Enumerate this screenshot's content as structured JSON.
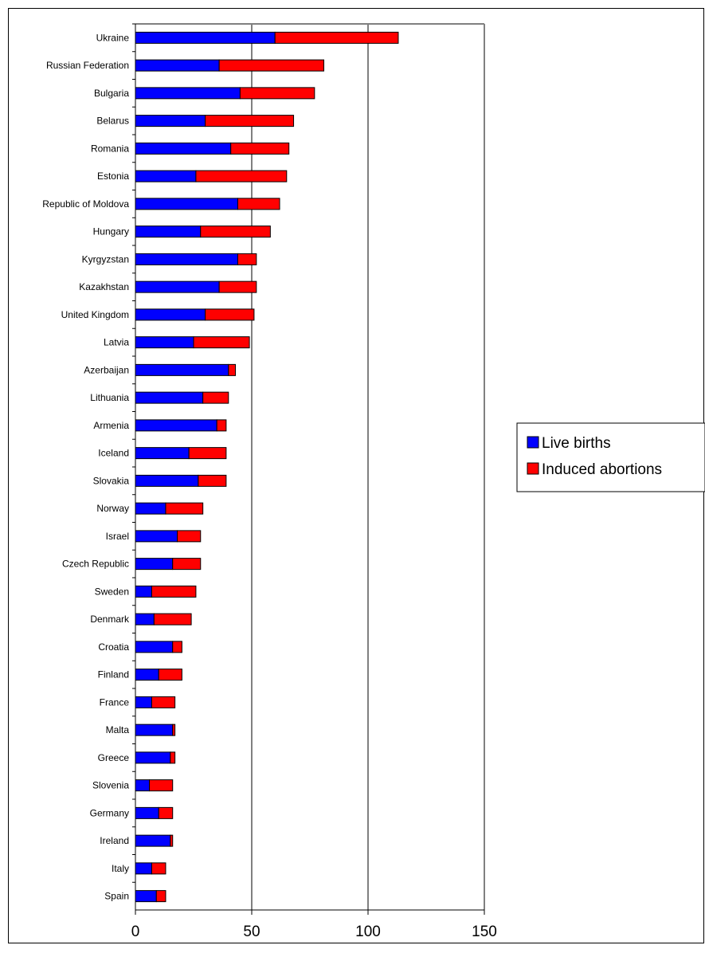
{
  "chart_data": {
    "type": "bar",
    "orientation": "horizontal",
    "stacked": true,
    "categories": [
      "Ukraine",
      "Russian Federation",
      "Bulgaria",
      "Belarus",
      "Romania",
      "Estonia",
      "Republic of Moldova",
      "Hungary",
      "Kyrgyzstan",
      "Kazakhstan",
      "United Kingdom",
      "Latvia",
      "Azerbaijan",
      "Lithuania",
      "Armenia",
      "Iceland",
      "Slovakia",
      "Norway",
      "Israel",
      "Czech Republic",
      "Sweden",
      "Denmark",
      "Croatia",
      "Finland",
      "France",
      "Malta",
      "Greece",
      "Slovenia",
      "Germany",
      "Ireland",
      "Italy",
      "Spain"
    ],
    "series": [
      {
        "name": "Live births",
        "color": "#0000ff",
        "values": [
          60,
          36,
          45,
          30,
          41,
          26,
          44,
          28,
          44,
          36,
          30,
          25,
          40,
          29,
          35,
          23,
          27,
          13,
          18,
          16,
          7,
          8,
          16,
          10,
          7,
          16,
          15,
          6,
          10,
          15,
          7,
          9
        ]
      },
      {
        "name": "Induced abortions",
        "color": "#ff0000",
        "values": [
          53,
          45,
          32,
          38,
          25,
          39,
          18,
          30,
          8,
          16,
          21,
          24,
          3,
          11,
          4,
          16,
          12,
          16,
          10,
          12,
          19,
          16,
          4,
          10,
          10,
          1,
          2,
          10,
          6,
          1,
          6,
          4
        ]
      }
    ],
    "xlim": [
      0,
      150
    ],
    "xticks": [
      0,
      50,
      100,
      150
    ],
    "grid": true,
    "legend_position": "right",
    "title": "",
    "xlabel": "",
    "ylabel": ""
  }
}
